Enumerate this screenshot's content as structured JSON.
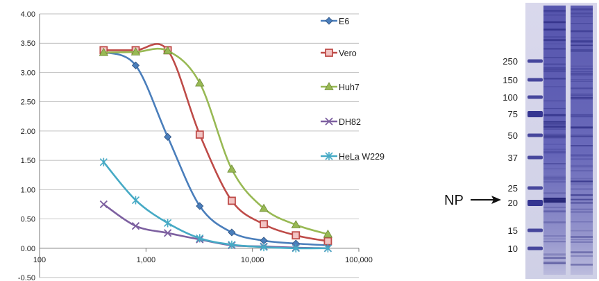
{
  "chart_data": [
    {
      "type": "line",
      "xscale": "log",
      "xlim": [
        100,
        100000
      ],
      "ylim": [
        -0.5,
        4.0
      ],
      "grid": true,
      "legend": "right",
      "title": "",
      "xlabel": "",
      "ylabel": "",
      "x_ticks": [
        {
          "value": 100,
          "label": "100"
        },
        {
          "value": 1000,
          "label": "1,000"
        },
        {
          "value": 10000,
          "label": "10,000"
        },
        {
          "value": 100000,
          "label": "100,000"
        }
      ],
      "y_ticks": [
        {
          "value": 4.0,
          "label": "4.00"
        },
        {
          "value": 3.5,
          "label": "3.50"
        },
        {
          "value": 3.0,
          "label": "3.00"
        },
        {
          "value": 2.5,
          "label": "2.50"
        },
        {
          "value": 2.0,
          "label": "2.00"
        },
        {
          "value": 1.5,
          "label": "1.50"
        },
        {
          "value": 1.0,
          "label": "1.00"
        },
        {
          "value": 0.5,
          "label": "0.50"
        },
        {
          "value": 0.0,
          "label": "0.00"
        },
        {
          "value": -0.5,
          "label": "-0.50"
        }
      ],
      "x": [
        400,
        800,
        1600,
        3200,
        6400,
        12800,
        25600,
        51200
      ],
      "series": [
        {
          "name": "E6",
          "color": "#4a7ebb",
          "marker": "diamond",
          "values": [
            3.35,
            3.12,
            1.9,
            0.72,
            0.27,
            0.13,
            0.08,
            0.05
          ]
        },
        {
          "name": "Vero",
          "color": "#be4b48",
          "marker": "square",
          "values": [
            3.38,
            3.38,
            3.38,
            1.94,
            0.81,
            0.41,
            0.22,
            0.12
          ]
        },
        {
          "name": "Huh7",
          "color": "#98b954",
          "marker": "triangle",
          "values": [
            3.34,
            3.35,
            3.37,
            2.82,
            1.35,
            0.68,
            0.4,
            0.24
          ]
        },
        {
          "name": "DH82",
          "color": "#7d60a0",
          "marker": "x",
          "values": [
            0.75,
            0.38,
            0.26,
            0.15,
            0.05,
            0.03,
            0.01,
            0.0
          ]
        },
        {
          "name": "HeLa W229",
          "color": "#46aac5",
          "marker": "star",
          "values": [
            1.47,
            0.82,
            0.43,
            0.17,
            0.06,
            0.02,
            0.0,
            0.0
          ]
        }
      ]
    }
  ],
  "gel": {
    "marker_labels": [
      "250",
      "150",
      "100",
      "75",
      "50",
      "37",
      "25",
      "20",
      "15",
      "10"
    ],
    "annotation": "NP"
  }
}
